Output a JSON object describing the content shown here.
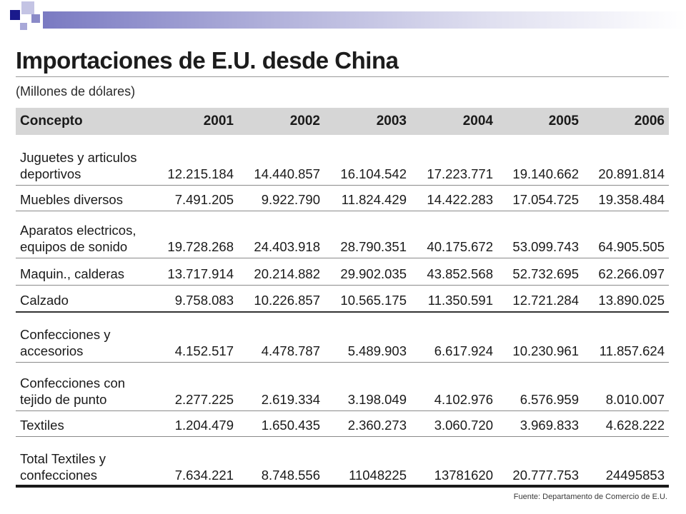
{
  "chart_data": {
    "type": "table",
    "title": "Importaciones de E.U. desde China",
    "subtitle": "(Millones de dólares)",
    "columns": [
      "Concepto",
      "2001",
      "2002",
      "2003",
      "2004",
      "2005",
      "2006"
    ],
    "rows": [
      {
        "concepto": "Juguetes y articulos deportivos",
        "values": [
          "12.215.184",
          "14.440.857",
          "16.104.542",
          "17.223.771",
          "19.140.662",
          "20.891.814"
        ]
      },
      {
        "concepto": "Muebles diversos",
        "values": [
          "7.491.205",
          "9.922.790",
          "11.824.429",
          "14.422.283",
          "17.054.725",
          "19.358.484"
        ]
      },
      {
        "concepto": "Aparatos electricos, equipos de sonido",
        "values": [
          "19.728.268",
          "24.403.918",
          "28.790.351",
          "40.175.672",
          "53.099.743",
          "64.905.505"
        ]
      },
      {
        "concepto": "Maquin., calderas",
        "values": [
          "13.717.914",
          "20.214.882",
          "29.902.035",
          "43.852.568",
          "52.732.695",
          "62.266.097"
        ]
      },
      {
        "concepto": "Calzado",
        "values": [
          "9.758.083",
          "10.226.857",
          "10.565.175",
          "11.350.591",
          "12.721.284",
          "13.890.025"
        ]
      },
      {
        "concepto": "Confecciones y accesorios",
        "values": [
          "4.152.517",
          "4.478.787",
          "5.489.903",
          "6.617.924",
          "10.230.961",
          "11.857.624"
        ]
      },
      {
        "concepto": "Confecciones con tejido de punto",
        "values": [
          "2.277.225",
          "2.619.334",
          "3.198.049",
          "4.102.976",
          "6.576.959",
          "8.010.007"
        ]
      },
      {
        "concepto": "Textiles",
        "values": [
          "1.204.479",
          "1.650.435",
          "2.360.273",
          "3.060.720",
          "3.969.833",
          "4.628.222"
        ]
      },
      {
        "concepto": "Total Textiles y confecciones",
        "values": [
          "7.634.221",
          "8.748.556",
          "11048225",
          "13781620",
          "20.777.753",
          "24495853"
        ]
      }
    ],
    "source": "Fuente: Departamento de Comercio de E.U."
  },
  "colors": {
    "header_band": "#d6d6d6",
    "deco_dark": "#1a1a8c",
    "deco_mid": "#7a7ac2",
    "deco_light": "#b8b8e0"
  }
}
